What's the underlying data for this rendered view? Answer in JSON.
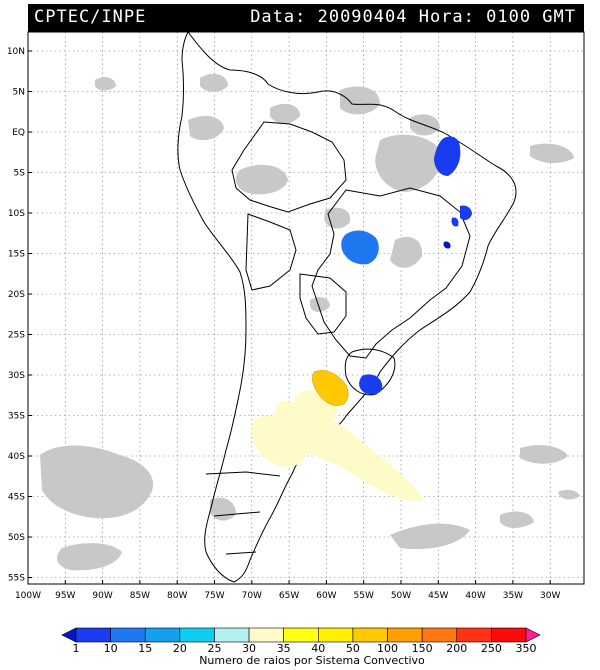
{
  "header": {
    "source": "CPTEC/INPE",
    "timestamp": "Data: 20090404 Hora: 0100 GMT"
  },
  "map": {
    "lat_labels": [
      "10N",
      "5N",
      "EQ",
      "5S",
      "10S",
      "15S",
      "20S",
      "25S",
      "30S",
      "35S",
      "40S",
      "45S",
      "50S",
      "55S"
    ],
    "lon_labels": [
      "100W",
      "95W",
      "90W",
      "85W",
      "80W",
      "75W",
      "70W",
      "65W",
      "60W",
      "55W",
      "50W",
      "45W",
      "40W",
      "35W",
      "30W"
    ]
  },
  "colorbar": {
    "title": "Numero de raios por Sistema Convectivo",
    "labels": [
      "1",
      "10",
      "15",
      "20",
      "25",
      "30",
      "35",
      "40",
      "50",
      "100",
      "150",
      "200",
      "250",
      "350"
    ],
    "colors": [
      "#0a14c8",
      "#1a3cf0",
      "#1e78f0",
      "#14a0ec",
      "#10ccf0",
      "#b4f0f0",
      "#fffbc8",
      "#ffff14",
      "#fff000",
      "#ffc800",
      "#ffa000",
      "#ff7814",
      "#ff3214",
      "#ff0a0a",
      "#ff1e96"
    ]
  }
}
